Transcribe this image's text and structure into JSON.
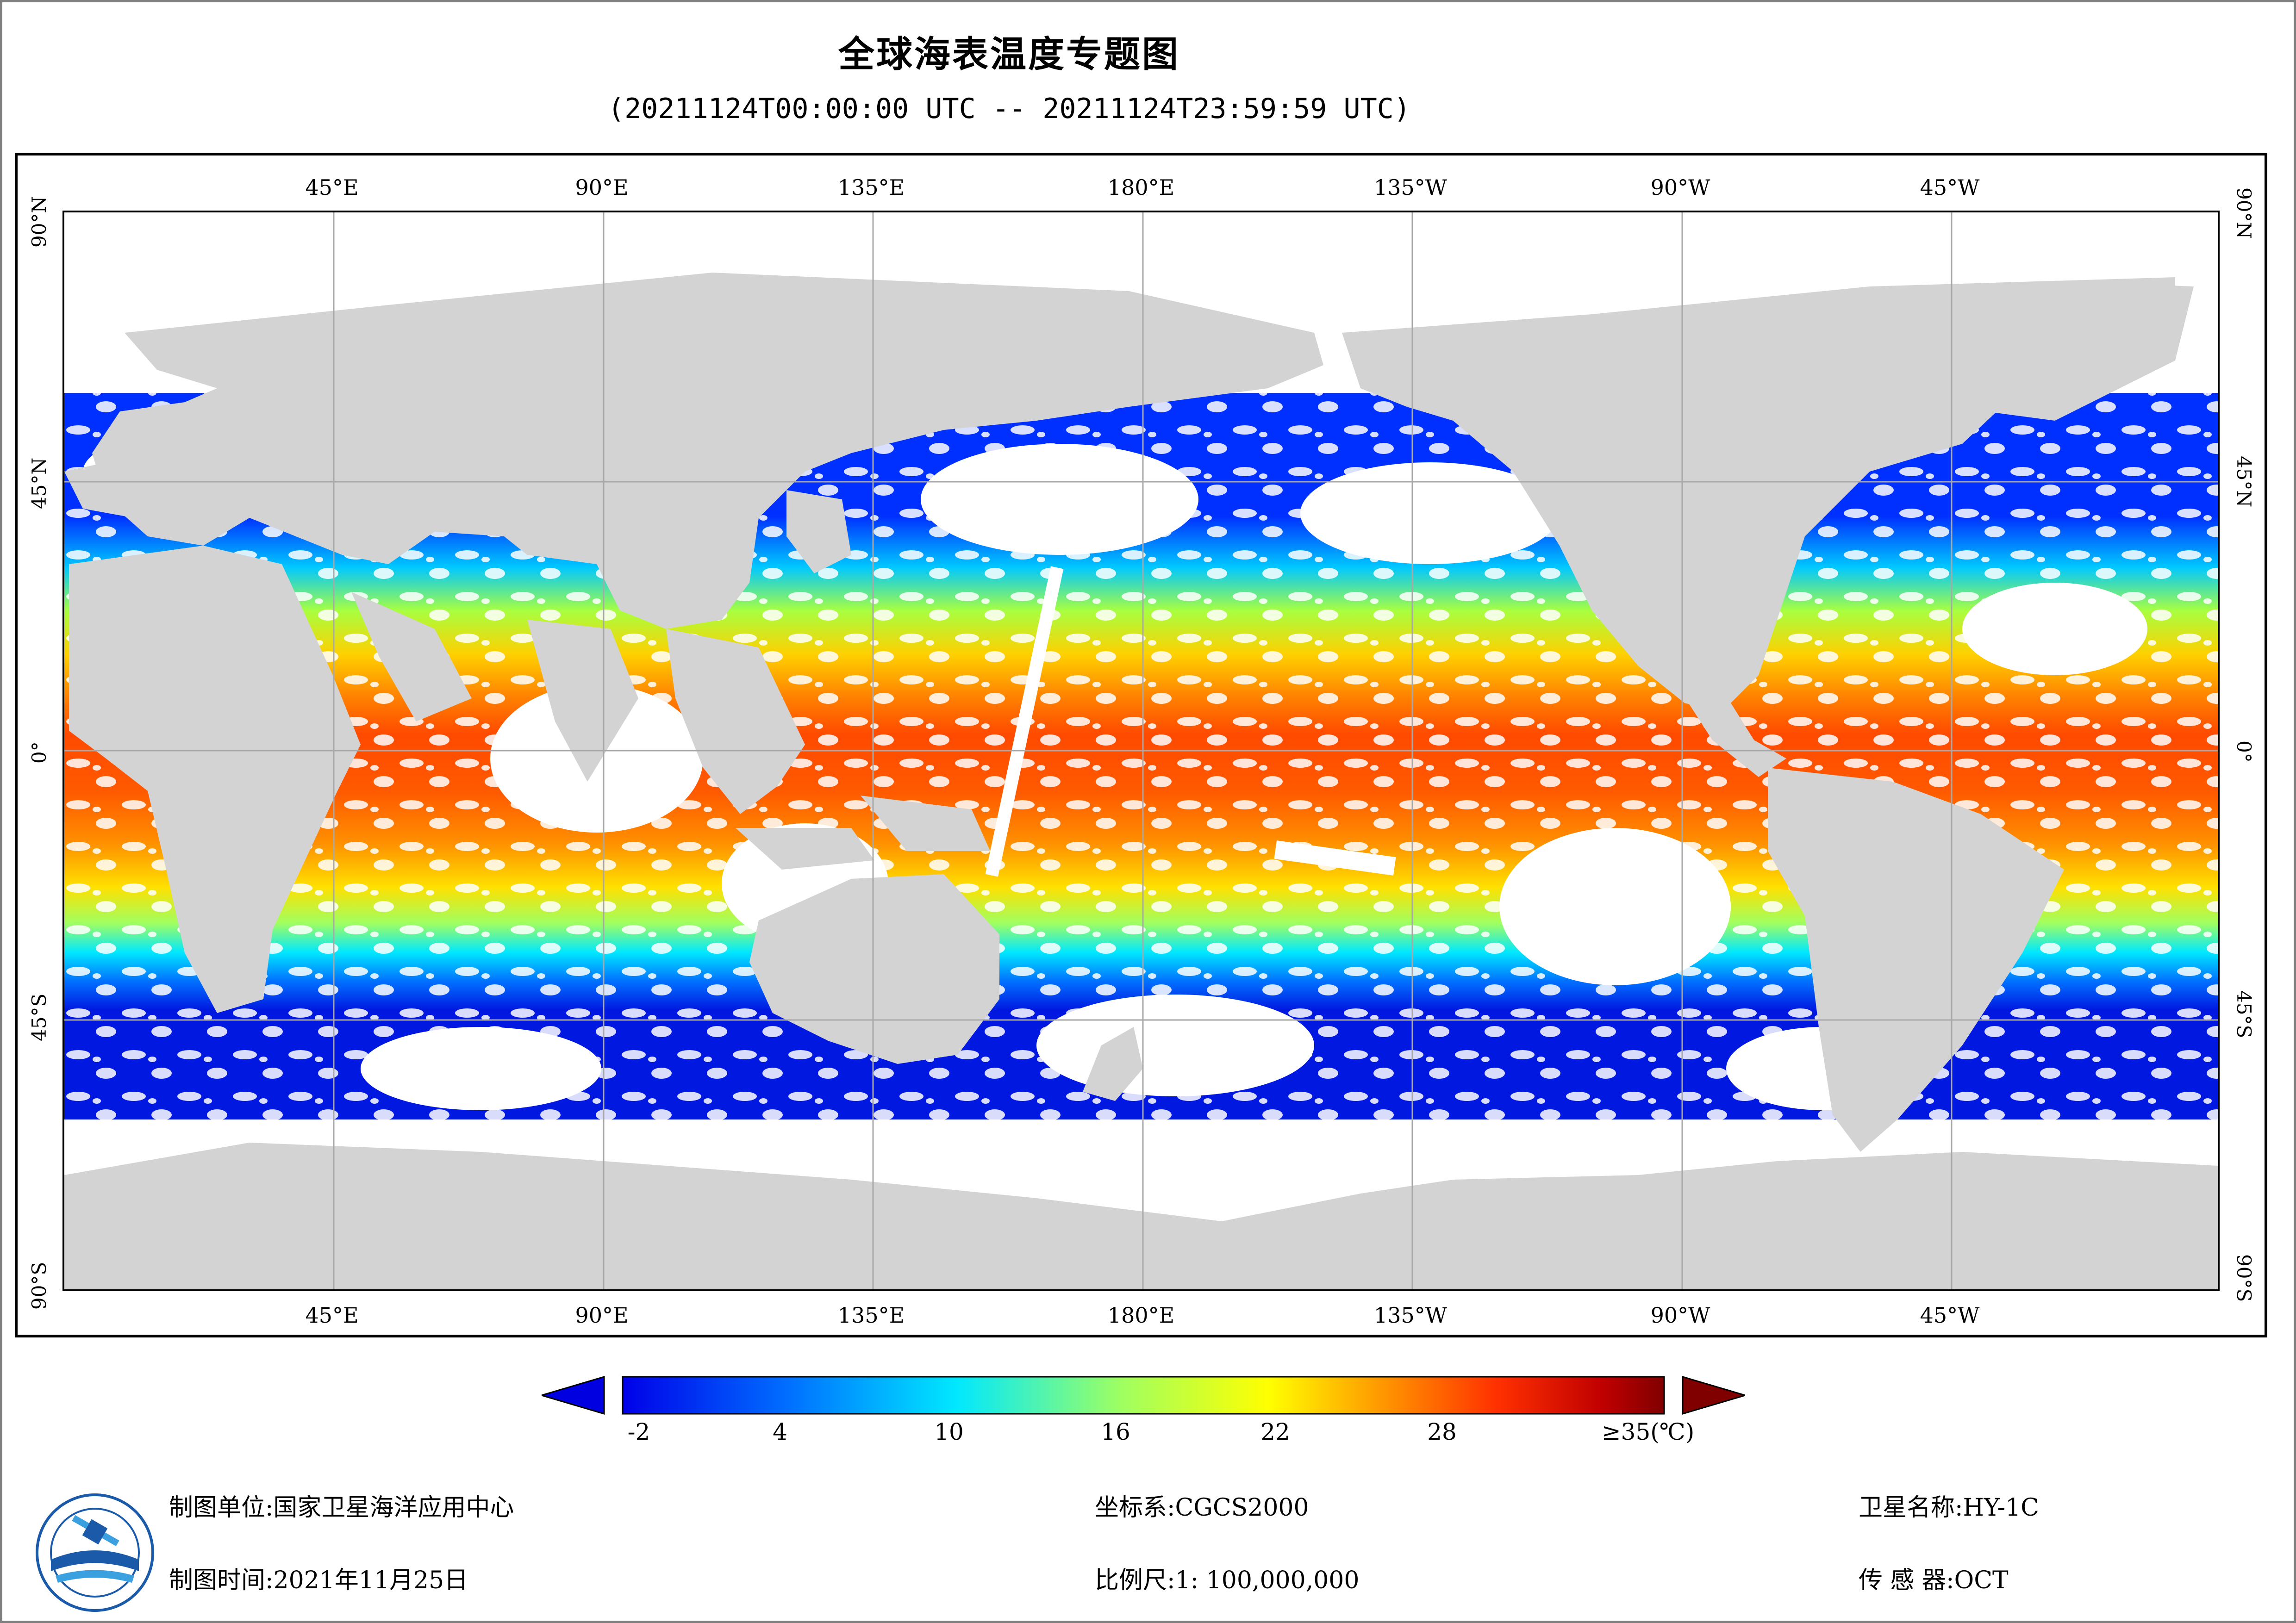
{
  "title": "全球海表温度专题图",
  "subtitle": "(20211124T00:00:00 UTC -- 20211124T23:59:59 UTC)",
  "map": {
    "lon_labels": [
      "45°E",
      "90°E",
      "135°E",
      "180°E",
      "135°W",
      "90°W",
      "45°W"
    ],
    "lat_labels": [
      "90°N",
      "45°N",
      "0°",
      "45°S",
      "90°S"
    ],
    "land_color": "#d3d3d3",
    "gridline_color": "#a8a8a8"
  },
  "colorbar": {
    "unit": "(℃)",
    "tick_labels": [
      "-2",
      "4",
      "10",
      "16",
      "22",
      "28",
      "≥35(℃)"
    ],
    "min": -2,
    "max": 35,
    "low_color": "#0000e0",
    "high_color": "#800000"
  },
  "footer": {
    "org_label": "制图单位:",
    "org_value": "国家卫星海洋应用中心",
    "time_label": "制图时间:",
    "time_value": "2021年11月25日",
    "crs_label": "坐标系:",
    "crs_value": "CGCS2000",
    "scale_label": "比例尺:",
    "scale_value": "1: 100,000,000",
    "satellite_label": "卫星名称:",
    "satellite_value": "HY-1C",
    "sensor_label": "传 感 器:",
    "sensor_value": "OCT"
  },
  "logo_icon": "nsoas-logo-icon"
}
